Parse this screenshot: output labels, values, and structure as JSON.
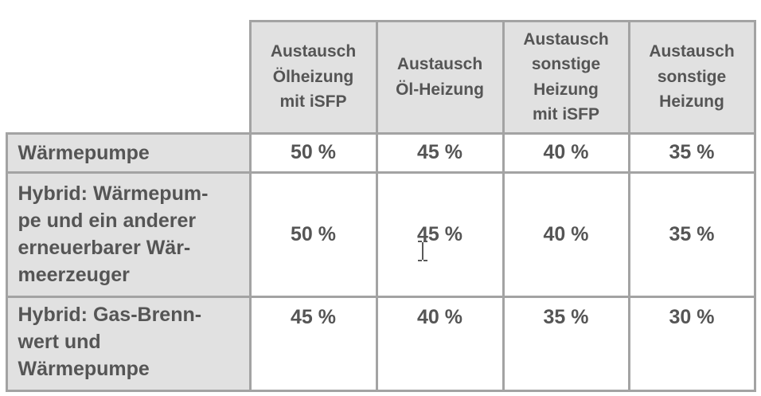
{
  "table": {
    "header": [
      [
        "Austausch",
        "Ölheizung",
        "mit iSFP"
      ],
      [
        "Austausch",
        "Öl-Heizung"
      ],
      [
        "Austausch",
        "sonstige",
        "Heizung",
        "mit iSFP"
      ],
      [
        "Austausch",
        "sonstige",
        "Heizung"
      ]
    ],
    "rows": [
      {
        "label": [
          "Wärmepumpe"
        ],
        "values": [
          "50 %",
          "45 %",
          "40 %",
          "35 %"
        ]
      },
      {
        "label": [
          "Hybrid: Wärmepum-",
          "pe und ein anderer",
          "erneuerbarer Wär-",
          "meerzeuger"
        ],
        "values": [
          "50 %",
          "45 %",
          "40 %",
          "35 %"
        ]
      },
      {
        "label": [
          "Hybrid: Gas-Brenn-",
          "wert und",
          "Wärmepumpe"
        ],
        "values": [
          "45 %",
          "40 %",
          "35 %",
          "30 %"
        ]
      }
    ]
  }
}
